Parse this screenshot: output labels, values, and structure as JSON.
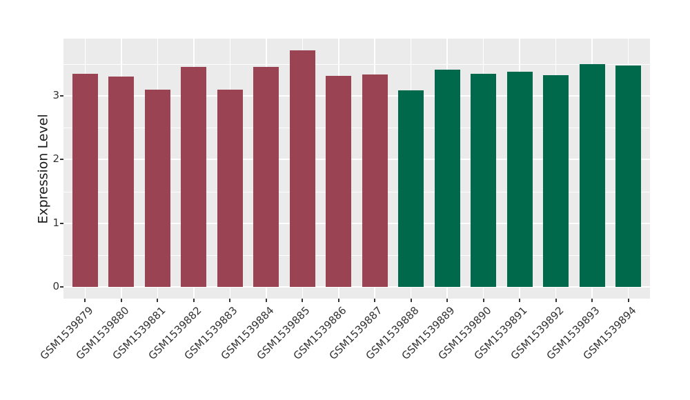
{
  "chart_data": {
    "type": "bar",
    "title": "",
    "xlabel": "",
    "ylabel": "Expression Level",
    "ylim": [
      -0.18,
      3.9
    ],
    "yticks": [
      0,
      1,
      2,
      3
    ],
    "yticks_minor": [
      0.5,
      1.5,
      2.5,
      3.5
    ],
    "grid": "on",
    "legend": "none",
    "categories": [
      "GSM1539879",
      "GSM1539880",
      "GSM1539881",
      "GSM1539882",
      "GSM1539883",
      "GSM1539884",
      "GSM1539885",
      "GSM1539886",
      "GSM1539887",
      "GSM1539888",
      "GSM1539889",
      "GSM1539890",
      "GSM1539891",
      "GSM1539892",
      "GSM1539893",
      "GSM1539894"
    ],
    "values": [
      3.35,
      3.3,
      3.1,
      3.46,
      3.1,
      3.46,
      3.72,
      3.31,
      3.34,
      3.09,
      3.41,
      3.35,
      3.38,
      3.33,
      3.5,
      3.48
    ],
    "bar_colors": [
      "#9A4352",
      "#9A4352",
      "#9A4352",
      "#9A4352",
      "#9A4352",
      "#9A4352",
      "#9A4352",
      "#9A4352",
      "#9A4352",
      "#00694B",
      "#00694B",
      "#00694B",
      "#00694B",
      "#00694B",
      "#00694B",
      "#00694B"
    ],
    "colors": {
      "group_red": "#9A4352",
      "group_green": "#00694B",
      "panel_background": "#EBEBEB",
      "gridline": "#FFFFFF",
      "axis_text": "#333333"
    }
  }
}
